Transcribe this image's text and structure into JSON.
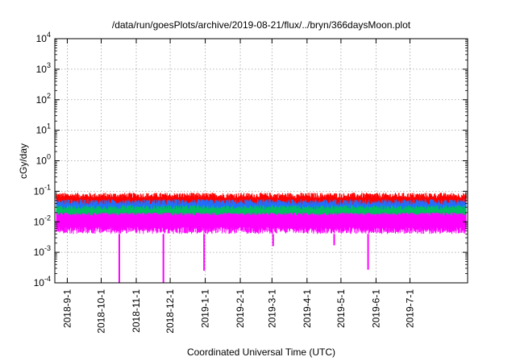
{
  "chart_data": {
    "type": "line",
    "title": "/data/run/goesPlots/archive/2019-08-21/flux/../bryn/366daysMoon.plot",
    "xlabel": "Coordinated Universal Time (UTC)",
    "ylabel": "cGy/day",
    "yscale": "log",
    "ylim": [
      0.0001,
      10000
    ],
    "xlim": [
      "2018-08-21",
      "2019-08-21"
    ],
    "grid": true,
    "legend": "none",
    "x_ticks": [
      "2018-9-1",
      "2018-10-1",
      "2018-11-1",
      "2018-12-1",
      "2019-1-1",
      "2019-2-1",
      "2019-3-1",
      "2019-4-1",
      "2019-5-1",
      "2019-6-1",
      "2019-7-1"
    ],
    "y_ticks": [
      {
        "base": "10",
        "exp": "-4",
        "value": 0.0001
      },
      {
        "base": "10",
        "exp": "-3",
        "value": 0.001
      },
      {
        "base": "10",
        "exp": "-2",
        "value": 0.01
      },
      {
        "base": "10",
        "exp": "-1",
        "value": 0.1
      },
      {
        "base": "10",
        "exp": "0",
        "value": 1
      },
      {
        "base": "10",
        "exp": "1",
        "value": 10
      },
      {
        "base": "10",
        "exp": "2",
        "value": 100
      },
      {
        "base": "10",
        "exp": "3",
        "value": 1000
      },
      {
        "base": "10",
        "exp": "4",
        "value": 10000
      }
    ],
    "series": [
      {
        "color": "#ff0000",
        "band": [
          0.018,
          0.09
        ],
        "typical_high": 0.075
      },
      {
        "color": "#1f6fff",
        "band": [
          0.015,
          0.055
        ],
        "typical_high": 0.045
      },
      {
        "color": "#00c060",
        "band": [
          0.012,
          0.035
        ],
        "typical_high": 0.03
      },
      {
        "color": "#ff00ff",
        "band": [
          0.004,
          0.02
        ],
        "typical_high": 0.018,
        "dips": [
          {
            "date": "2018-10-17",
            "min": 0.0001
          },
          {
            "date": "2018-11-25",
            "min": 0.0001
          },
          {
            "date": "2018-12-31",
            "min": 0.00025
          },
          {
            "date": "2019-03-02",
            "min": 0.0016
          },
          {
            "date": "2019-04-25",
            "min": 0.0017
          },
          {
            "date": "2019-05-25",
            "min": 0.00027
          }
        ]
      }
    ]
  }
}
